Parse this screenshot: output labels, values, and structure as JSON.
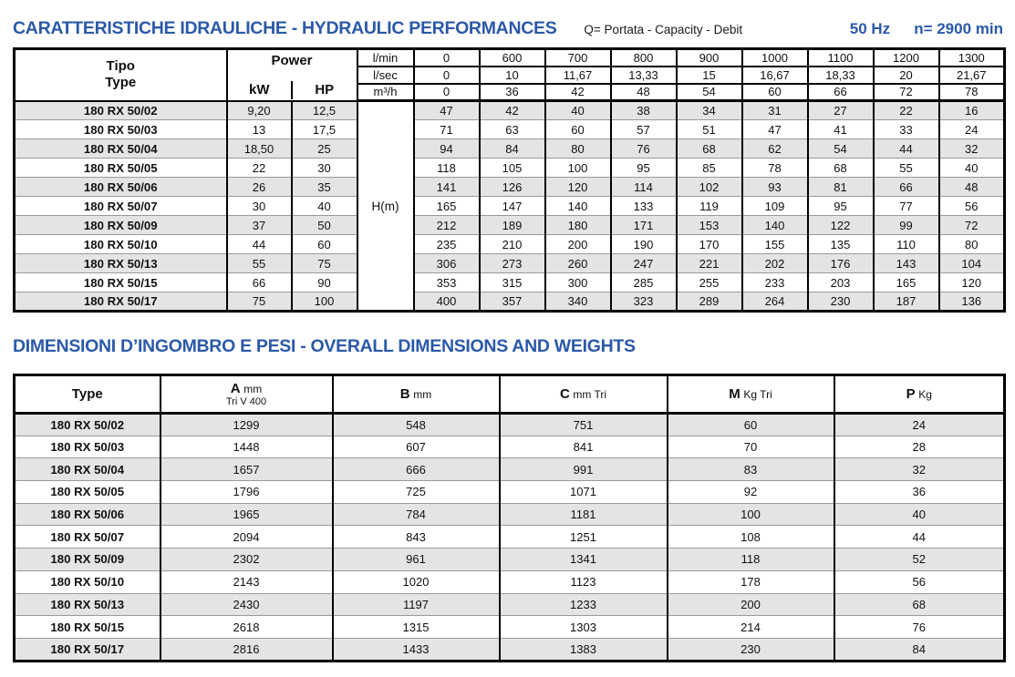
{
  "page": {
    "title1": "CARATTERISTICHE IDRAULICHE - HYDRAULIC PERFORMANCES",
    "flow_legend": "Q= Portata - Capacity - Debit",
    "frequency": "50 Hz",
    "speed": "n= 2900 min",
    "title2": "DIMENSIONI D’INGOMBRO E PESI - OVERALL DIMENSIONS AND WEIGHTS",
    "accent_blue": "#2b59a9",
    "row_gray": "#e4e4e4"
  },
  "perf_table": {
    "tipo_label": "Tipo",
    "type_label": "Type",
    "power_label": "Power",
    "kw_label": "kW",
    "hp_label": "HP",
    "head_label": "H(m)",
    "unit_rows": [
      {
        "unit": "l/min",
        "values": [
          "0",
          "600",
          "700",
          "800",
          "900",
          "1000",
          "1100",
          "1200",
          "1300"
        ]
      },
      {
        "unit": "l/sec",
        "values": [
          "0",
          "10",
          "11,67",
          "13,33",
          "15",
          "16,67",
          "18,33",
          "20",
          "21,67"
        ]
      },
      {
        "unit": "m³/h",
        "values": [
          "0",
          "36",
          "42",
          "48",
          "54",
          "60",
          "66",
          "72",
          "78"
        ]
      }
    ],
    "rows": [
      {
        "type": "180 RX 50/02",
        "kw": "9,20",
        "hp": "12,5",
        "h": [
          "47",
          "42",
          "40",
          "38",
          "34",
          "31",
          "27",
          "22",
          "16"
        ]
      },
      {
        "type": "180 RX 50/03",
        "kw": "13",
        "hp": "17,5",
        "h": [
          "71",
          "63",
          "60",
          "57",
          "51",
          "47",
          "41",
          "33",
          "24"
        ]
      },
      {
        "type": "180 RX 50/04",
        "kw": "18,50",
        "hp": "25",
        "h": [
          "94",
          "84",
          "80",
          "76",
          "68",
          "62",
          "54",
          "44",
          "32"
        ]
      },
      {
        "type": "180 RX 50/05",
        "kw": "22",
        "hp": "30",
        "h": [
          "118",
          "105",
          "100",
          "95",
          "85",
          "78",
          "68",
          "55",
          "40"
        ]
      },
      {
        "type": "180 RX 50/06",
        "kw": "26",
        "hp": "35",
        "h": [
          "141",
          "126",
          "120",
          "114",
          "102",
          "93",
          "81",
          "66",
          "48"
        ]
      },
      {
        "type": "180 RX 50/07",
        "kw": "30",
        "hp": "40",
        "h": [
          "165",
          "147",
          "140",
          "133",
          "119",
          "109",
          "95",
          "77",
          "56"
        ]
      },
      {
        "type": "180 RX 50/09",
        "kw": "37",
        "hp": "50",
        "h": [
          "212",
          "189",
          "180",
          "171",
          "153",
          "140",
          "122",
          "99",
          "72"
        ]
      },
      {
        "type": "180 RX 50/10",
        "kw": "44",
        "hp": "60",
        "h": [
          "235",
          "210",
          "200",
          "190",
          "170",
          "155",
          "135",
          "110",
          "80"
        ]
      },
      {
        "type": "180 RX 50/13",
        "kw": "55",
        "hp": "75",
        "h": [
          "306",
          "273",
          "260",
          "247",
          "221",
          "202",
          "176",
          "143",
          "104"
        ]
      },
      {
        "type": "180 RX 50/15",
        "kw": "66",
        "hp": "90",
        "h": [
          "353",
          "315",
          "300",
          "285",
          "255",
          "233",
          "203",
          "165",
          "120"
        ]
      },
      {
        "type": "180 RX 50/17",
        "kw": "75",
        "hp": "100",
        "h": [
          "400",
          "357",
          "340",
          "323",
          "289",
          "264",
          "230",
          "187",
          "136"
        ]
      }
    ]
  },
  "dim_table": {
    "headers": {
      "type": "Type",
      "a_main": "A",
      "a_unit": "mm",
      "a_sub": "Tri V 400",
      "b_main": "B",
      "b_unit": "mm",
      "c_main": "C",
      "c_unit": "mm Tri",
      "m_main": "M",
      "m_unit": "Kg Tri",
      "p_main": "P",
      "p_unit": "Kg"
    },
    "rows": [
      {
        "type": "180 RX 50/02",
        "a": "1299",
        "b": "548",
        "c": "751",
        "m": "60",
        "p": "24"
      },
      {
        "type": "180 RX 50/03",
        "a": "1448",
        "b": "607",
        "c": "841",
        "m": "70",
        "p": "28"
      },
      {
        "type": "180 RX 50/04",
        "a": "1657",
        "b": "666",
        "c": "991",
        "m": "83",
        "p": "32"
      },
      {
        "type": "180 RX 50/05",
        "a": "1796",
        "b": "725",
        "c": "1071",
        "m": "92",
        "p": "36"
      },
      {
        "type": "180 RX 50/06",
        "a": "1965",
        "b": "784",
        "c": "1181",
        "m": "100",
        "p": "40"
      },
      {
        "type": "180 RX 50/07",
        "a": "2094",
        "b": "843",
        "c": "1251",
        "m": "108",
        "p": "44"
      },
      {
        "type": "180 RX 50/09",
        "a": "2302",
        "b": "961",
        "c": "1341",
        "m": "118",
        "p": "52"
      },
      {
        "type": "180 RX 50/10",
        "a": "2143",
        "b": "1020",
        "c": "1123",
        "m": "178",
        "p": "56"
      },
      {
        "type": "180 RX 50/13",
        "a": "2430",
        "b": "1197",
        "c": "1233",
        "m": "200",
        "p": "68"
      },
      {
        "type": "180 RX 50/15",
        "a": "2618",
        "b": "1315",
        "c": "1303",
        "m": "214",
        "p": "76"
      },
      {
        "type": "180 RX 50/17",
        "a": "2816",
        "b": "1433",
        "c": "1383",
        "m": "230",
        "p": "84"
      }
    ]
  }
}
